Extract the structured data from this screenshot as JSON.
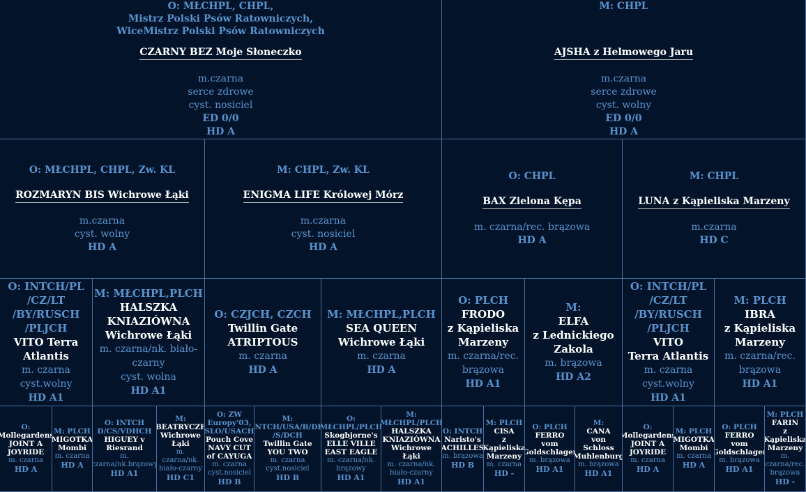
{
  "gen1": {
    "sire": {
      "title_lines": [
        "O: MŁCHPL, CHPL,",
        "Mistrz Polski Psów Ratowniczych,",
        "WiceMistrz Polski Psów Ratowniczych"
      ],
      "name": "CZARNY BEZ Moje Słoneczko",
      "details": [
        "m.czarna",
        "serce zdrowe",
        "cyst. nosiciel"
      ],
      "health": [
        "ED 0/0",
        "HD  A"
      ]
    },
    "dam": {
      "title_lines": [
        "M: CHPL"
      ],
      "name": "AJSHA z Helmowego Jaru",
      "details": [
        "m.czarna",
        "serce zdrowe",
        "cyst. wolny"
      ],
      "health": [
        "ED 0/0",
        "HD  A"
      ]
    }
  },
  "gen2": [
    {
      "title": "O: MŁCHPL, CHPL, Zw. KL",
      "name": "ROZMARYN BIS Wichrowe Łąki",
      "details": [
        "m.czarna",
        "cyst. wolny"
      ],
      "health": "HD  A"
    },
    {
      "title": "M: CHPL, Zw. KL",
      "name": "ENIGMA LIFE Królowej Mórz",
      "details": [
        "m.czarna",
        "cyst. nosiciel"
      ],
      "health": "HD  A"
    },
    {
      "title": "O: CHPL",
      "name": "BAX Zielona Kępa",
      "details": [
        "m. czarna/rec. brązowa"
      ],
      "health": "HD  A"
    },
    {
      "title": "M: CHPL",
      "name": "LUNA z Kąpieliska Marzeny",
      "details": [
        "m.czarna"
      ],
      "health": "HD  C"
    }
  ],
  "gen3": [
    {
      "title_lines": [
        "O: INTCH/PL",
        "/CZ/LT",
        "/BY/RUSCH",
        "/PLJCH"
      ],
      "name_lines": [
        "VITO Terra",
        "Atlantis"
      ],
      "details": [
        "m. czarna",
        "cyst.wolny"
      ],
      "health": "HD A1"
    },
    {
      "title_lines": [
        "M: MŁCHPL,PLCH"
      ],
      "name_lines": [
        "HALSZKA",
        "KNIAZIÓWNA",
        "Wichrowe Łąki"
      ],
      "details": [
        "m. czarna/nk. biało-",
        "czarny",
        "cyst. wolna"
      ],
      "health": "HD A1"
    },
    {
      "title_lines": [
        "O: CZJCH, CZCH"
      ],
      "name_lines": [
        "Twillin Gate",
        "ATRIPTOUS"
      ],
      "details": [
        "m. czarna"
      ],
      "health": "HD A"
    },
    {
      "title_lines": [
        "M: MŁCHPL,PLCH"
      ],
      "name_lines": [
        "SEA QUEEN",
        "Wichrowe Łąki"
      ],
      "details": [
        "m. czarna"
      ],
      "health": "HD A"
    },
    {
      "title_lines": [
        "O: PLCH"
      ],
      "name_lines": [
        "FRODO",
        "z Kąpieliska",
        "Marzeny"
      ],
      "details": [
        "m. czarna/rec.",
        "brązowa"
      ],
      "health": "HD A1"
    },
    {
      "title_lines": [
        "M:"
      ],
      "name_lines": [
        "ELFA",
        "z Lednickiego",
        "Zakola"
      ],
      "details": [
        "m. brązowa"
      ],
      "health": "HD A2"
    },
    {
      "title_lines": [
        "O: INTCH/PL",
        "/CZ/LT",
        "/BY/RUSCH",
        "/PLJCH"
      ],
      "name_lines": [
        "VITO",
        "Terra Atlantis"
      ],
      "details": [
        "m. czarna",
        "cyst.wolny"
      ],
      "health": "HD A1"
    },
    {
      "title_lines": [
        "M: PLCH"
      ],
      "name_lines": [
        "IBRA",
        "z Kąpieliska",
        "Marzeny"
      ],
      "details": [
        "m. czarna/rec.",
        "brązowa"
      ],
      "health": "HD A1"
    }
  ],
  "gen4": [
    {
      "title_lines": [
        "O:"
      ],
      "name_lines": [
        "Mollegardens",
        "JOINT A",
        "JOYRIDE"
      ],
      "details": [
        "m. czarna"
      ],
      "health": "HD A"
    },
    {
      "title_lines": [
        "M: PLCH"
      ],
      "name_lines": [
        "MIGOTKA",
        "Mombi"
      ],
      "details": [
        "m. czarna"
      ],
      "health": "HD A"
    },
    {
      "title_lines": [
        "O: INTCH",
        "D/CS/VDHCH"
      ],
      "name_lines": [
        "HIGUEY v",
        "Riesrand"
      ],
      "details": [
        "m.",
        "czarna/nk.brązowy"
      ],
      "health": "HD A1"
    },
    {
      "title_lines": [
        "M:"
      ],
      "name_lines": [
        "BEATRYCZE",
        "Wichrowe",
        "Łąki"
      ],
      "details": [
        "m. czarna/nk.",
        "biało-czarny"
      ],
      "health": "HD C1"
    },
    {
      "title_lines": [
        "O: ZW",
        "Europy'03,",
        "SLO/USACH"
      ],
      "name_lines": [
        "Pouch Cove",
        "NAVY CUT",
        "of CAYUGA"
      ],
      "details": [
        "m. czarna",
        "cyst.nosiciel"
      ],
      "health": "HD B"
    },
    {
      "title_lines": [
        "M:",
        "INTCH/USA/B/DK",
        "/S/DCH"
      ],
      "name_lines": [
        "Twillin Gate",
        "YOU TWO"
      ],
      "details": [
        "m. czarna",
        "cyst.nosiciel"
      ],
      "health": "HD B"
    },
    {
      "title_lines": [
        "O:",
        "MŁCHPL/PLCH"
      ],
      "name_lines": [
        "Skogbjorne's",
        "ELLE VILLE",
        "EAST EAGLE"
      ],
      "details": [
        "m. czarna/nk.",
        "brązowy"
      ],
      "health": "HD A1"
    },
    {
      "title_lines": [
        "M:",
        "MŁCHPL/PLCH"
      ],
      "name_lines": [
        "HALSZKA",
        "KNIAZIÓWNA",
        "Wichrowe Łąki"
      ],
      "details": [
        "m. czarna/nk.",
        "biało-czarny"
      ],
      "health": "HD A1"
    },
    {
      "title_lines": [
        "O: INTCH"
      ],
      "name_lines": [
        "Naristo's",
        "ACHILLES"
      ],
      "details": [
        "m. brązowa"
      ],
      "health": "HD B"
    },
    {
      "title_lines": [
        "M: PLCH"
      ],
      "name_lines": [
        "CISA",
        "z",
        "Kąpieliska",
        "Marzeny"
      ],
      "details": [
        "m. czarna"
      ],
      "health": "HD -"
    },
    {
      "title_lines": [
        "O: PLCH"
      ],
      "name_lines": [
        "FERRO",
        "vom",
        "Goldschlager"
      ],
      "details": [
        "m. brązowa"
      ],
      "health": "HD A1"
    },
    {
      "title_lines": [
        "M:"
      ],
      "name_lines": [
        "CANA",
        "von Schloss",
        "Muhlenburg"
      ],
      "details": [
        "m. brązowa"
      ],
      "health": "HD A1"
    },
    {
      "title_lines": [
        "O:"
      ],
      "name_lines": [
        "Mollegardens",
        "JOINT A",
        "JOYRIDE"
      ],
      "details": [
        "m. czarna"
      ],
      "health": "HD A"
    },
    {
      "title_lines": [
        "M: PLCH"
      ],
      "name_lines": [
        "MIGOTKA",
        "Mombi"
      ],
      "details": [
        "m. czarna"
      ],
      "health": "HD A"
    },
    {
      "title_lines": [
        "O: PLCH"
      ],
      "name_lines": [
        "FERRO",
        "vom",
        "Goldschlager"
      ],
      "details": [
        "m. brązowa"
      ],
      "health": "HD A1"
    },
    {
      "title_lines": [
        "M: PLCH"
      ],
      "name_lines": [
        "FARIN",
        "z",
        "Kąpieliska",
        "Marzeny"
      ],
      "details": [
        "m.",
        "czarna/rec.",
        "brązowa"
      ],
      "health": "HD -"
    }
  ]
}
